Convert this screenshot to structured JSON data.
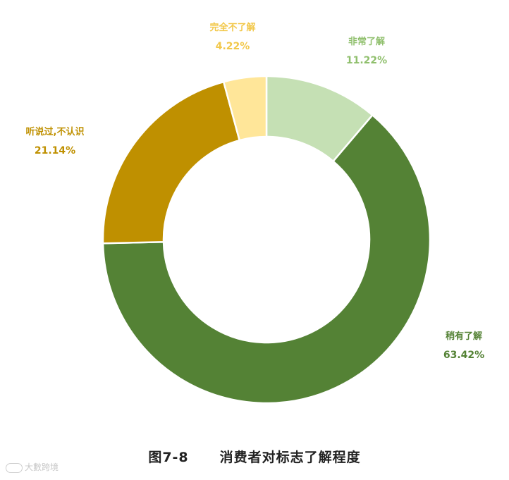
{
  "chart_data": {
    "type": "pie",
    "style": "donut",
    "title": "消费者对标志了解程度",
    "figure_number": "图7-8",
    "slices": [
      {
        "name": "非常了解",
        "value": 11.22,
        "value_label": "11.22%",
        "color": "#c5e0b4",
        "label_color": "#8fbf6c"
      },
      {
        "name": "稍有了解",
        "value": 63.42,
        "value_label": "63.42%",
        "color": "#548235",
        "label_color": "#548235"
      },
      {
        "name": "听说过,不认识",
        "value": 21.14,
        "value_label": "21.14%",
        "color": "#bf9000",
        "label_color": "#bf9000"
      },
      {
        "name": "完全不了解",
        "value": 4.22,
        "value_label": "4.22%",
        "color": "#ffe699",
        "label_color": "#f2c84b"
      }
    ],
    "start_angle_deg": 0,
    "direction": "clockwise"
  },
  "watermark": {
    "text": "大數跨境"
  }
}
